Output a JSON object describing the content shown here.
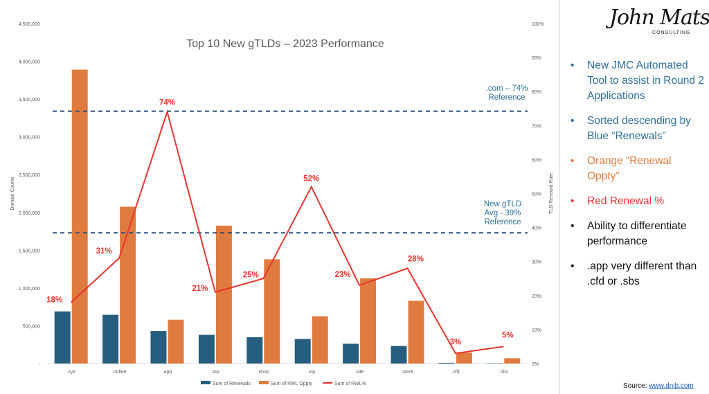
{
  "chart_data": {
    "type": "bar",
    "title": "Top 10 New gTLDs – 2023 Performance",
    "categories": [
      ".xyz",
      ".online",
      ".app",
      ".top",
      ".shop",
      ".vip",
      ".site",
      ".store",
      ".cfd",
      ".sbs"
    ],
    "series": [
      {
        "name": "Sum of Renewals",
        "type": "bar",
        "color": "#255e7e",
        "axis": "left",
        "values": [
          690000,
          645000,
          430000,
          380000,
          348000,
          325000,
          262000,
          232000,
          10000,
          5000
        ]
      },
      {
        "name": "Sum of RWL Oppty",
        "type": "bar",
        "color": "#e07b3f",
        "axis": "left",
        "values": [
          3890000,
          2075000,
          580000,
          1825000,
          1380000,
          625000,
          1128000,
          830000,
          145000,
          70000
        ]
      },
      {
        "name": "Sum of RWL%",
        "type": "line",
        "color": "#e8332e",
        "axis": "right",
        "values": [
          18,
          31,
          74,
          21,
          25,
          52,
          23,
          28,
          3,
          5
        ],
        "labels": [
          "18%",
          "31%",
          "74%",
          "21%",
          "25%",
          "52%",
          "23%",
          "28%",
          "3%",
          "5%"
        ]
      }
    ],
    "ylabel": "Domain Counts",
    "y2label": "TLD Renewal Rate",
    "ylim": [
      0,
      4500000
    ],
    "y2lim": [
      0,
      100
    ],
    "yticks": [
      "-",
      "500,000",
      "1,000,000",
      "1,500,000",
      "2,000,000",
      "2,500,000",
      "3,000,000",
      "3,500,000",
      "4,000,000",
      "4,500,000"
    ],
    "y2ticks": [
      "0%",
      "10%",
      "20%",
      "30%",
      "40%",
      "50%",
      "60%",
      "70%",
      "80%",
      "90%",
      "100%"
    ],
    "reference_lines": [
      {
        "value": 3340000,
        "label_lines": [
          ".com – 74%",
          "Reference"
        ]
      },
      {
        "value": 1730000,
        "label_lines": [
          "New gTLD",
          "Avg - 39%",
          "Reference"
        ]
      }
    ],
    "legend_position": "bottom"
  },
  "logo": {
    "script": "John Matson",
    "sub": "CONSULTING"
  },
  "bullets": [
    {
      "text": "New JMC Automated Tool to assist in Round 2 Applications",
      "color": "#2e6f9a"
    },
    {
      "text": "Sorted descending by Blue “Renewals”",
      "color": "#2e6f9a"
    },
    {
      "text": "Orange “Renewal Oppty”",
      "color": "#e07b3f"
    },
    {
      "text": "Red Renewal %",
      "color": "#e8332e"
    },
    {
      "text": "Ability to differentiate performance",
      "color": "#111111"
    },
    {
      "text": ".app very different than .cfd or .sbs",
      "color": "#111111"
    }
  ],
  "source": {
    "prefix": "Source: ",
    "link": "www.dnib.com"
  },
  "colors": {
    "reference": "#2c4e78",
    "reference_text": "#2e6f9a",
    "axis_text": "#595959"
  }
}
